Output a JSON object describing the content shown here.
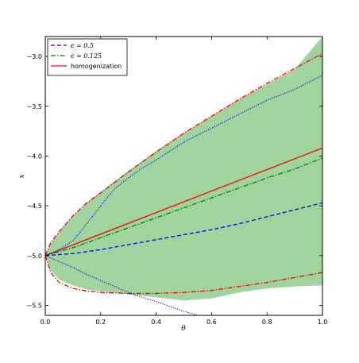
{
  "chart_data": {
    "type": "line",
    "xlabel": "θ",
    "ylabel": "x",
    "xlim": [
      0.0,
      1.0
    ],
    "ylim": [
      -5.6,
      -2.8
    ],
    "xticks": [
      0.0,
      0.2,
      0.4,
      0.6,
      0.8,
      1.0
    ],
    "xtick_labels": [
      "0.0",
      "0.2",
      "0.4",
      "0.6",
      "0.8",
      "1.0"
    ],
    "yticks": [
      -5.5,
      -5.0,
      -4.5,
      -4.0,
      -3.5,
      -3.0
    ],
    "ytick_labels": [
      "−5.5",
      "−5.0",
      "−4.5",
      "−4.0",
      "−3.5",
      "−3.0"
    ],
    "grid": false,
    "legend_position": "top-left",
    "legend": [
      {
        "label": "ϵ = 0.5",
        "color": "#0000ff",
        "style": "dashed"
      },
      {
        "label": "ϵ = 0.125",
        "color": "#008000",
        "style": "dashdot"
      },
      {
        "label": "homogenization",
        "color": "#ff0000",
        "style": "solid"
      }
    ],
    "band": {
      "color": "#9fd49f",
      "x": [
        0.0,
        0.02,
        0.05,
        0.1,
        0.15,
        0.2,
        0.3,
        0.4,
        0.5,
        0.6,
        0.7,
        0.8,
        0.9,
        1.0
      ],
      "upper": [
        -5.0,
        -4.88,
        -4.76,
        -4.6,
        -4.47,
        -4.36,
        -4.15,
        -3.95,
        -3.77,
        -3.6,
        -3.43,
        -3.28,
        -3.13,
        -2.8
      ],
      "lower": [
        -5.0,
        -5.15,
        -5.24,
        -5.3,
        -5.34,
        -5.36,
        -5.39,
        -5.42,
        -5.45,
        -5.43,
        -5.37,
        -5.33,
        -5.31,
        -5.3
      ]
    },
    "series": [
      {
        "color": "#ff0000",
        "style": "solid",
        "x": [
          0.0,
          1.0
        ],
        "y": [
          -5.0,
          -3.92
        ]
      },
      {
        "color": "#ff0000",
        "style": "dashdot",
        "x": [
          0.0,
          0.02,
          0.05,
          0.1,
          0.15,
          0.2,
          0.3,
          0.4,
          0.5,
          0.6,
          0.7,
          0.8,
          0.9,
          1.0
        ],
        "y": [
          -5.0,
          -4.87,
          -4.76,
          -4.6,
          -4.47,
          -4.37,
          -4.16,
          -3.96,
          -3.77,
          -3.6,
          -3.43,
          -3.27,
          -3.12,
          -2.97
        ]
      },
      {
        "color": "#ff0000",
        "style": "dashdot",
        "x": [
          0.0,
          0.02,
          0.05,
          0.1,
          0.15,
          0.2,
          0.3,
          0.4,
          0.5,
          0.6,
          0.7,
          0.8,
          0.9,
          1.0
        ],
        "y": [
          -5.0,
          -5.17,
          -5.27,
          -5.33,
          -5.355,
          -5.37,
          -5.38,
          -5.38,
          -5.37,
          -5.35,
          -5.31,
          -5.27,
          -5.22,
          -5.17
        ]
      },
      {
        "name": "ϵ = 0.125",
        "color": "#008000",
        "style": "dashdot",
        "x": [
          0.0,
          0.05,
          0.1,
          0.15,
          0.2,
          0.3,
          0.4,
          0.5,
          0.6,
          0.7,
          0.8,
          0.9,
          1.0
        ],
        "y": [
          -5.0,
          -4.96,
          -4.92,
          -4.87,
          -4.82,
          -4.72,
          -4.62,
          -4.52,
          -4.42,
          -4.32,
          -4.22,
          -4.13,
          -4.02
        ]
      },
      {
        "name": "ϵ = 0.5",
        "color": "#0000ff",
        "style": "dashed",
        "x": [
          0.0,
          0.1,
          0.2,
          0.3,
          0.4,
          0.5,
          0.6,
          0.7,
          0.8,
          0.9,
          1.0
        ],
        "y": [
          -5.0,
          -4.98,
          -4.94,
          -4.89,
          -4.84,
          -4.79,
          -4.74,
          -4.68,
          -4.61,
          -4.54,
          -4.47
        ]
      },
      {
        "color": "#0000ff",
        "style": "dotted",
        "x": [
          0.0,
          0.05,
          0.1,
          0.15,
          0.2,
          0.25,
          0.3,
          0.35,
          0.4,
          0.5,
          0.6,
          0.7,
          0.8,
          0.9,
          1.0
        ],
        "y": [
          -5.0,
          -4.94,
          -4.85,
          -4.68,
          -4.5,
          -4.33,
          -4.22,
          -4.12,
          -4.04,
          -3.86,
          -3.72,
          -3.58,
          -3.44,
          -3.33,
          -3.19
        ]
      },
      {
        "color": "#0000ff",
        "style": "dotted",
        "x": [
          0.0,
          0.05,
          0.1,
          0.15,
          0.2,
          0.25,
          0.3,
          0.35,
          0.4,
          0.45,
          0.5,
          0.55
        ],
        "y": [
          -5.0,
          -5.06,
          -5.12,
          -5.19,
          -5.25,
          -5.31,
          -5.37,
          -5.42,
          -5.46,
          -5.51,
          -5.56,
          -5.6
        ]
      }
    ]
  }
}
